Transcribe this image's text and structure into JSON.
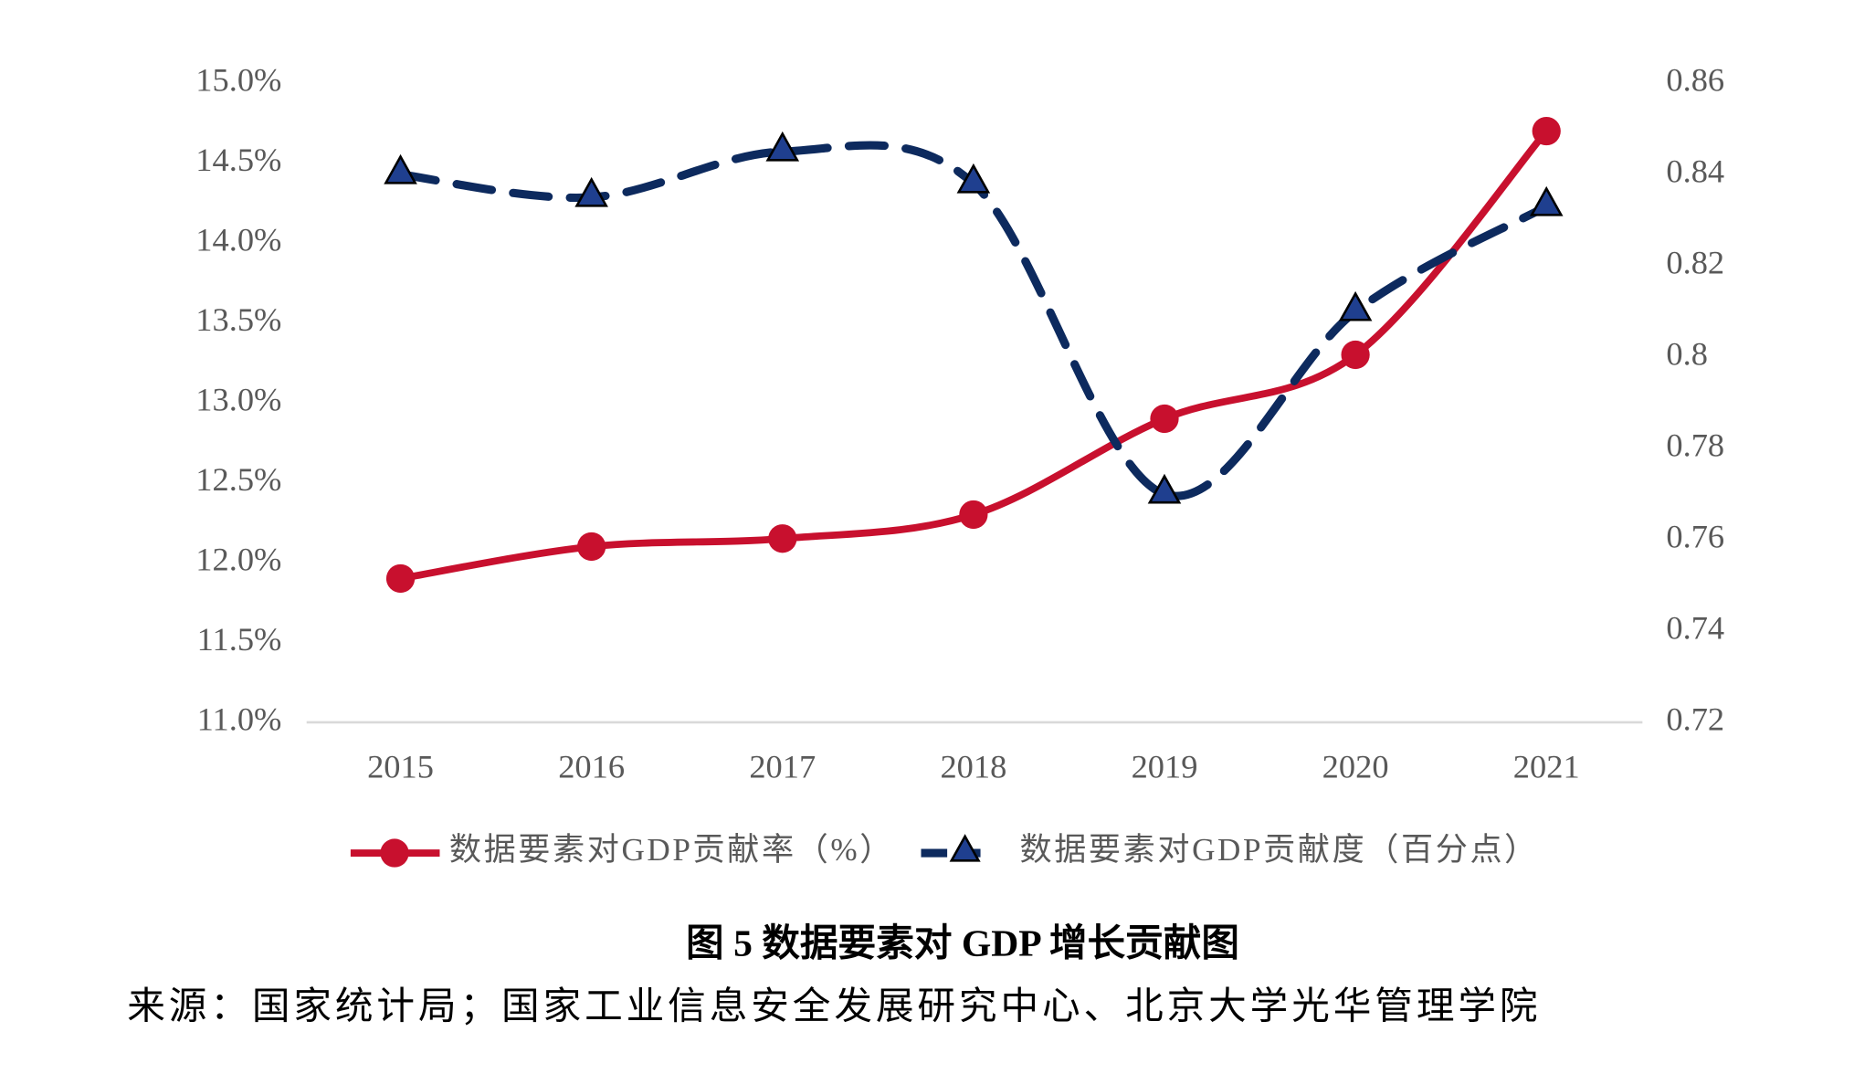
{
  "chart_data": {
    "type": "line",
    "title": "图 5 数据要素对 GDP 增长贡献图",
    "source": "来源：国家统计局；国家工业信息安全发展研究中心、北京大学光华管理学院",
    "categories": [
      "2015",
      "2016",
      "2017",
      "2018",
      "2019",
      "2020",
      "2021"
    ],
    "series": [
      {
        "name": "数据要素对GDP贡献率（%）",
        "color": "#c8102e",
        "values": [
          11.9,
          12.1,
          12.15,
          12.3,
          12.9,
          13.3,
          14.7
        ]
      },
      {
        "name": "数据要素对GDP贡献度（百分点）",
        "color": "#0d2a5e",
        "axis": "y2",
        "values": [
          0.84,
          0.835,
          0.845,
          0.838,
          0.77,
          0.81,
          0.833
        ]
      }
    ],
    "ylim": [
      11.0,
      15.0
    ],
    "yticks": [
      {
        "value": 11.0,
        "label": "11.0%"
      },
      {
        "value": 11.5,
        "label": "11.5%"
      },
      {
        "value": 12.0,
        "label": "12.0%"
      },
      {
        "value": 12.5,
        "label": "12.5%"
      },
      {
        "value": 13.0,
        "label": "13.0%"
      },
      {
        "value": 13.5,
        "label": "13.5%"
      },
      {
        "value": 14.0,
        "label": "14.0%"
      },
      {
        "value": 14.5,
        "label": "14.5%"
      },
      {
        "value": 15.0,
        "label": "15.0%"
      }
    ],
    "y2lim": [
      0.72,
      0.86
    ],
    "y2ticks": [
      0.72,
      0.74,
      0.76,
      0.78,
      0.8,
      0.82,
      0.84,
      0.86
    ],
    "legend": "bottom"
  }
}
